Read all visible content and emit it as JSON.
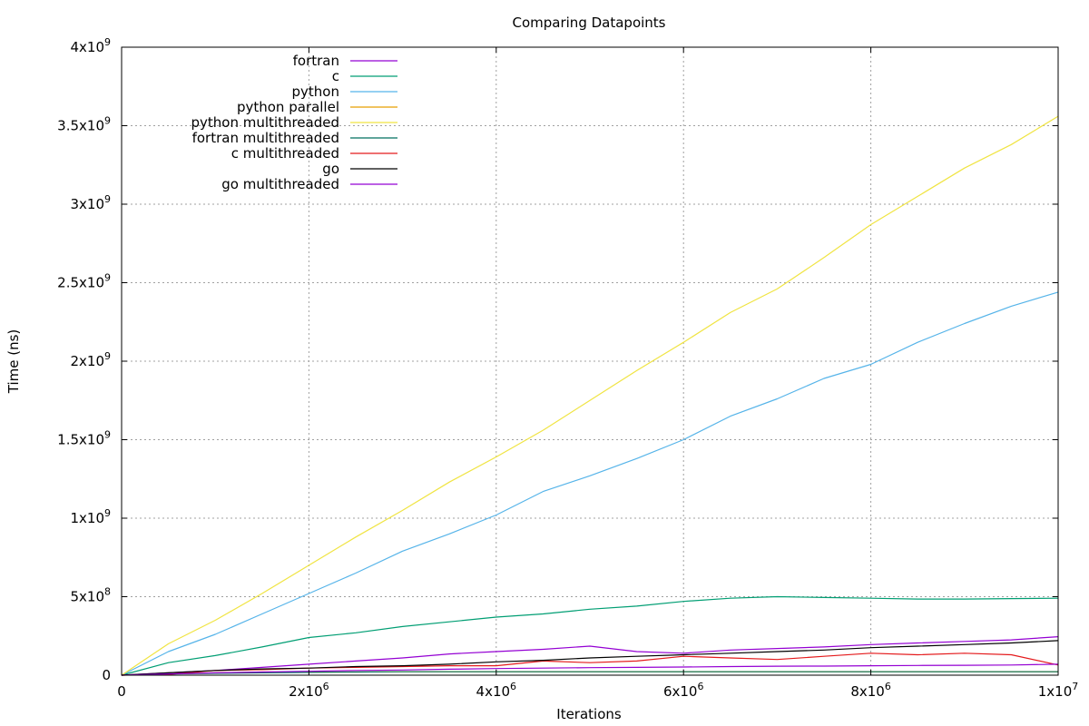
{
  "chart_data": {
    "type": "line",
    "title": "Comparing Datapoints",
    "xlabel": "Iterations",
    "ylabel": "Time (ns)",
    "xlim": [
      0,
      10000000
    ],
    "ylim": [
      0,
      4000000000
    ],
    "grid": true,
    "legend_position": "top-left",
    "x_ticks": [
      {
        "value": 0,
        "base": "0",
        "exp": ""
      },
      {
        "value": 2000000,
        "base": "2x10",
        "exp": "6"
      },
      {
        "value": 4000000,
        "base": "4x10",
        "exp": "6"
      },
      {
        "value": 6000000,
        "base": "6x10",
        "exp": "6"
      },
      {
        "value": 8000000,
        "base": "8x10",
        "exp": "6"
      },
      {
        "value": 10000000,
        "base": "1x10",
        "exp": "7"
      }
    ],
    "y_ticks": [
      {
        "value": 0,
        "base": "0",
        "exp": ""
      },
      {
        "value": 500000000,
        "base": "5x10",
        "exp": "8"
      },
      {
        "value": 1000000000,
        "base": "1x10",
        "exp": "9"
      },
      {
        "value": 1500000000,
        "base": "1.5x10",
        "exp": "9"
      },
      {
        "value": 2000000000,
        "base": "2x10",
        "exp": "9"
      },
      {
        "value": 2500000000,
        "base": "2.5x10",
        "exp": "9"
      },
      {
        "value": 3000000000,
        "base": "3x10",
        "exp": "9"
      },
      {
        "value": 3500000000,
        "base": "3.5x10",
        "exp": "9"
      },
      {
        "value": 4000000000,
        "base": "4x10",
        "exp": "9"
      }
    ],
    "x": [
      0,
      500000,
      1000000,
      1500000,
      2000000,
      2500000,
      3000000,
      3500000,
      4000000,
      4500000,
      5000000,
      5500000,
      6000000,
      6500000,
      7000000,
      7500000,
      8000000,
      8500000,
      9000000,
      9500000,
      10000000
    ],
    "series": [
      {
        "name": "fortran",
        "color": "#9400d3",
        "values": [
          0,
          15000000,
          30000000,
          50000000,
          70000000,
          90000000,
          110000000,
          135000000,
          150000000,
          165000000,
          185000000,
          150000000,
          140000000,
          160000000,
          170000000,
          180000000,
          195000000,
          205000000,
          215000000,
          225000000,
          245000000
        ]
      },
      {
        "name": "c",
        "color": "#009e73",
        "values": [
          0,
          80000000,
          125000000,
          180000000,
          240000000,
          270000000,
          310000000,
          340000000,
          370000000,
          390000000,
          420000000,
          440000000,
          470000000,
          490000000,
          500000000,
          495000000,
          490000000,
          485000000,
          485000000,
          488000000,
          490000000
        ]
      },
      {
        "name": "python",
        "color": "#56b4e9",
        "values": [
          0,
          150000000,
          260000000,
          390000000,
          520000000,
          650000000,
          790000000,
          900000000,
          1020000000,
          1170000000,
          1270000000,
          1380000000,
          1500000000,
          1650000000,
          1760000000,
          1890000000,
          1980000000,
          2120000000,
          2240000000,
          2350000000,
          2440000000
        ]
      },
      {
        "name": "python parallel",
        "color": "#e69f00",
        "values": [
          0,
          10000000,
          15000000,
          20000000,
          20000000,
          20000000,
          22000000,
          22000000,
          22000000,
          22000000,
          22000000,
          22000000,
          22000000,
          22000000,
          22000000,
          22000000,
          22000000,
          22000000,
          22000000,
          22000000,
          22000000
        ]
      },
      {
        "name": "python multithreaded",
        "color": "#f0e442",
        "values": [
          0,
          200000000,
          350000000,
          520000000,
          700000000,
          880000000,
          1050000000,
          1230000000,
          1390000000,
          1560000000,
          1750000000,
          1940000000,
          2120000000,
          2310000000,
          2460000000,
          2660000000,
          2870000000,
          3050000000,
          3230000000,
          3380000000,
          3560000000
        ]
      },
      {
        "name": "fortran multithreaded",
        "color": "#006f5f",
        "values": [
          0,
          8000000,
          12000000,
          15000000,
          18000000,
          20000000,
          22000000,
          22000000,
          22000000,
          22000000,
          22000000,
          22000000,
          22000000,
          22000000,
          22000000,
          22000000,
          22000000,
          22000000,
          22000000,
          22000000,
          22000000
        ]
      },
      {
        "name": "c multithreaded",
        "color": "#e41a1c",
        "values": [
          0,
          5000000,
          30000000,
          35000000,
          45000000,
          50000000,
          55000000,
          60000000,
          60000000,
          90000000,
          80000000,
          90000000,
          120000000,
          110000000,
          100000000,
          120000000,
          140000000,
          130000000,
          140000000,
          130000000,
          65000000
        ]
      },
      {
        "name": "go",
        "color": "#000000",
        "values": [
          0,
          15000000,
          30000000,
          40000000,
          45000000,
          55000000,
          60000000,
          70000000,
          85000000,
          95000000,
          110000000,
          120000000,
          130000000,
          140000000,
          150000000,
          160000000,
          175000000,
          185000000,
          195000000,
          205000000,
          220000000
        ]
      },
      {
        "name": "go multithreaded",
        "color": "#9400d3",
        "values": [
          0,
          8000000,
          15000000,
          20000000,
          25000000,
          30000000,
          33000000,
          38000000,
          42000000,
          45000000,
          48000000,
          50000000,
          52000000,
          55000000,
          57000000,
          58000000,
          60000000,
          62000000,
          63000000,
          65000000,
          70000000
        ]
      }
    ]
  }
}
